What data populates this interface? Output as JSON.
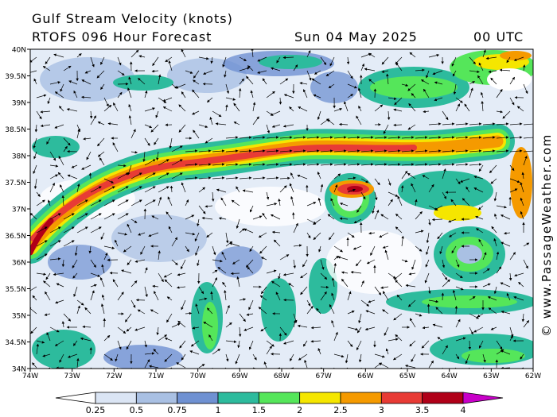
{
  "header": {
    "title": "Gulf Stream Velocity (knots)",
    "model": "RTOFS 096 Hour Forecast",
    "date": "Sun 04 May 2025",
    "time": "00 UTC"
  },
  "watermark": "© www.PassageWeather.com",
  "map": {
    "lat_labels": [
      "40N",
      "39.5N",
      "39N",
      "38.5N",
      "38N",
      "37.5N",
      "37N",
      "36.5N",
      "36N",
      "35.5N",
      "35N",
      "34.5N",
      "34N"
    ],
    "lon_labels": [
      "74W",
      "73W",
      "72W",
      "71W",
      "70W",
      "69W",
      "68W",
      "67W",
      "66W",
      "65W",
      "64W",
      "63W",
      "62W"
    ],
    "lat_range": [
      34,
      40
    ],
    "lon_range": [
      -74,
      -62
    ]
  },
  "legend": {
    "labels": [
      "0.25",
      "0.5",
      "0.75",
      "1",
      "1.5",
      "2",
      "2.5",
      "3",
      "3.5",
      "4"
    ],
    "colors": [
      "#ffffff",
      "#dbe5f4",
      "#a9c0e3",
      "#6f91d2",
      "#2dbb9d",
      "#55e65a",
      "#f5e600",
      "#f59a00",
      "#e83b35",
      "#b00018",
      "#c800c8"
    ]
  }
}
